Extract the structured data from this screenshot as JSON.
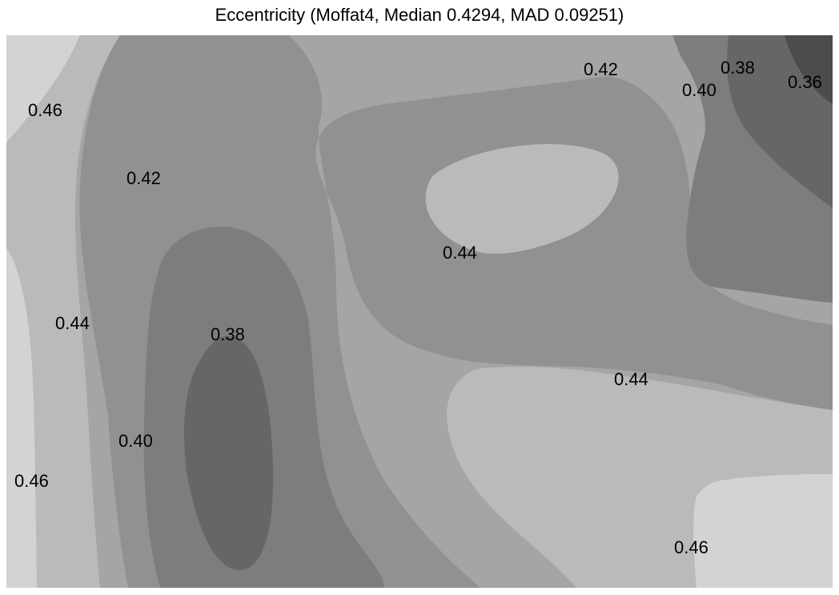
{
  "chart_data": {
    "type": "contour",
    "title": "Eccentricity (Moffat4, Median 0.4294, MAD 0.09251)",
    "levels": [
      0.36,
      0.38,
      0.4,
      0.42,
      0.44,
      0.46
    ],
    "colormap": "grayscale (lower values darker)",
    "level_colors": {
      "below_0.36": "#4c4c4c",
      "0.36-0.38": "#666666",
      "0.38-0.40": "#7d7d7d",
      "0.40-0.42": "#919191",
      "0.42-0.44": "#a5a5a5",
      "0.44-0.46": "#bababa",
      "above_0.46": "#d3d3d3"
    },
    "contour_labels": [
      "0.46",
      "0.42",
      "0.44",
      "0.38",
      "0.40",
      "0.46",
      "0.44",
      "0.42",
      "0.40",
      "0.38",
      "0.36",
      "0.44",
      "0.46"
    ]
  }
}
